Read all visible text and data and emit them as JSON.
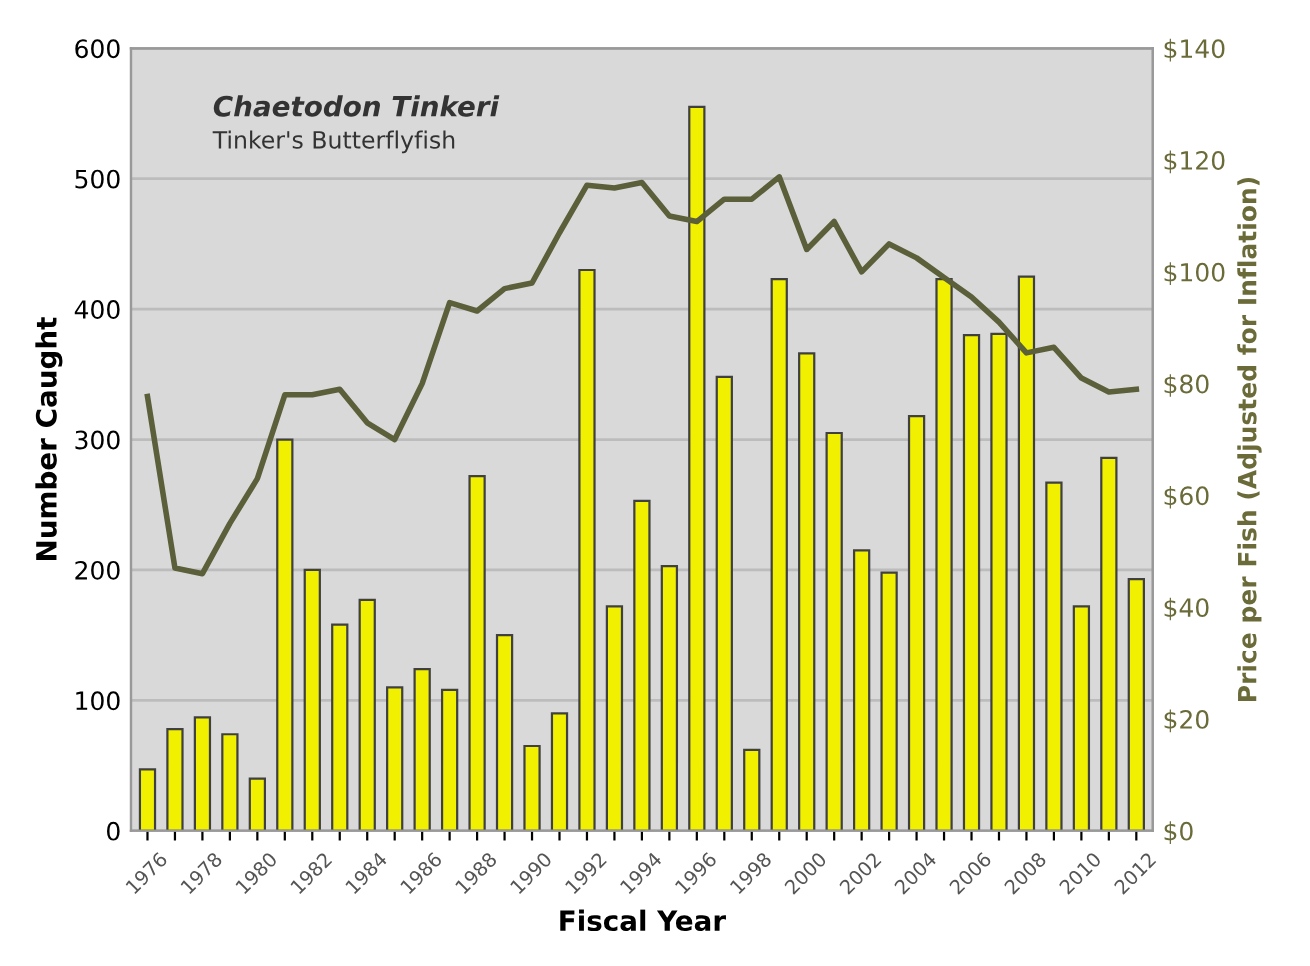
{
  "chart_data": {
    "type": "bar",
    "categories": [
      "1976",
      null,
      "1978",
      null,
      "1980",
      null,
      "1982",
      null,
      "1984",
      null,
      "1986",
      null,
      "1988",
      null,
      "1990",
      null,
      "1992",
      null,
      "1994",
      null,
      "1996",
      null,
      "1998",
      null,
      "2000",
      null,
      "2002",
      null,
      "2004",
      null,
      "2006",
      null,
      "2008",
      null,
      "2010",
      null,
      "2012"
    ],
    "series": [
      {
        "color": "#f0f000",
        "values": [
          47,
          78,
          87,
          74,
          40,
          300,
          200,
          158,
          177,
          110,
          124,
          108,
          272,
          150,
          65,
          90,
          430,
          172,
          253,
          203,
          555,
          348,
          62,
          423,
          366,
          305,
          215,
          198,
          318,
          423,
          380,
          381,
          425,
          267,
          172,
          286,
          193
        ]
      },
      {
        "type": "line",
        "axis": "y2",
        "color": "#5b5f3a",
        "values": [
          77.7,
          47,
          46,
          55,
          63,
          78,
          78,
          79,
          73,
          70,
          80,
          94.5,
          93,
          97,
          98,
          107,
          115.5,
          115,
          116,
          110,
          109,
          113,
          113,
          117,
          104,
          109,
          100,
          105,
          102.5,
          99,
          95.5,
          91,
          85.5,
          86.5,
          81,
          78.5,
          79
        ]
      }
    ],
    "annotations": [
      "Chaetodon Tinkeri",
      "Tinker's Butterflyfish"
    ],
    "xlabel": "Fiscal Year",
    "ylabel": "Number Caught",
    "y2label": "Price per Fish (Adjusted for Inflation)",
    "ylim": [
      0,
      600
    ],
    "yticks": [
      0,
      100,
      200,
      300,
      400,
      500,
      600
    ],
    "y2lim": [
      0,
      140
    ],
    "y2ticks": [
      {
        "value": 0,
        "label": "$0"
      },
      {
        "value": 20,
        "label": "$20"
      },
      {
        "value": 40,
        "label": "$40"
      },
      {
        "value": 60,
        "label": "$60"
      },
      {
        "value": 80,
        "label": "$80"
      },
      {
        "value": 100,
        "label": "$100"
      },
      {
        "value": 120,
        "label": "$120"
      },
      {
        "value": 140,
        "label": "$140"
      }
    ],
    "grid": "y",
    "marker": "none",
    "line_style": "solid"
  }
}
